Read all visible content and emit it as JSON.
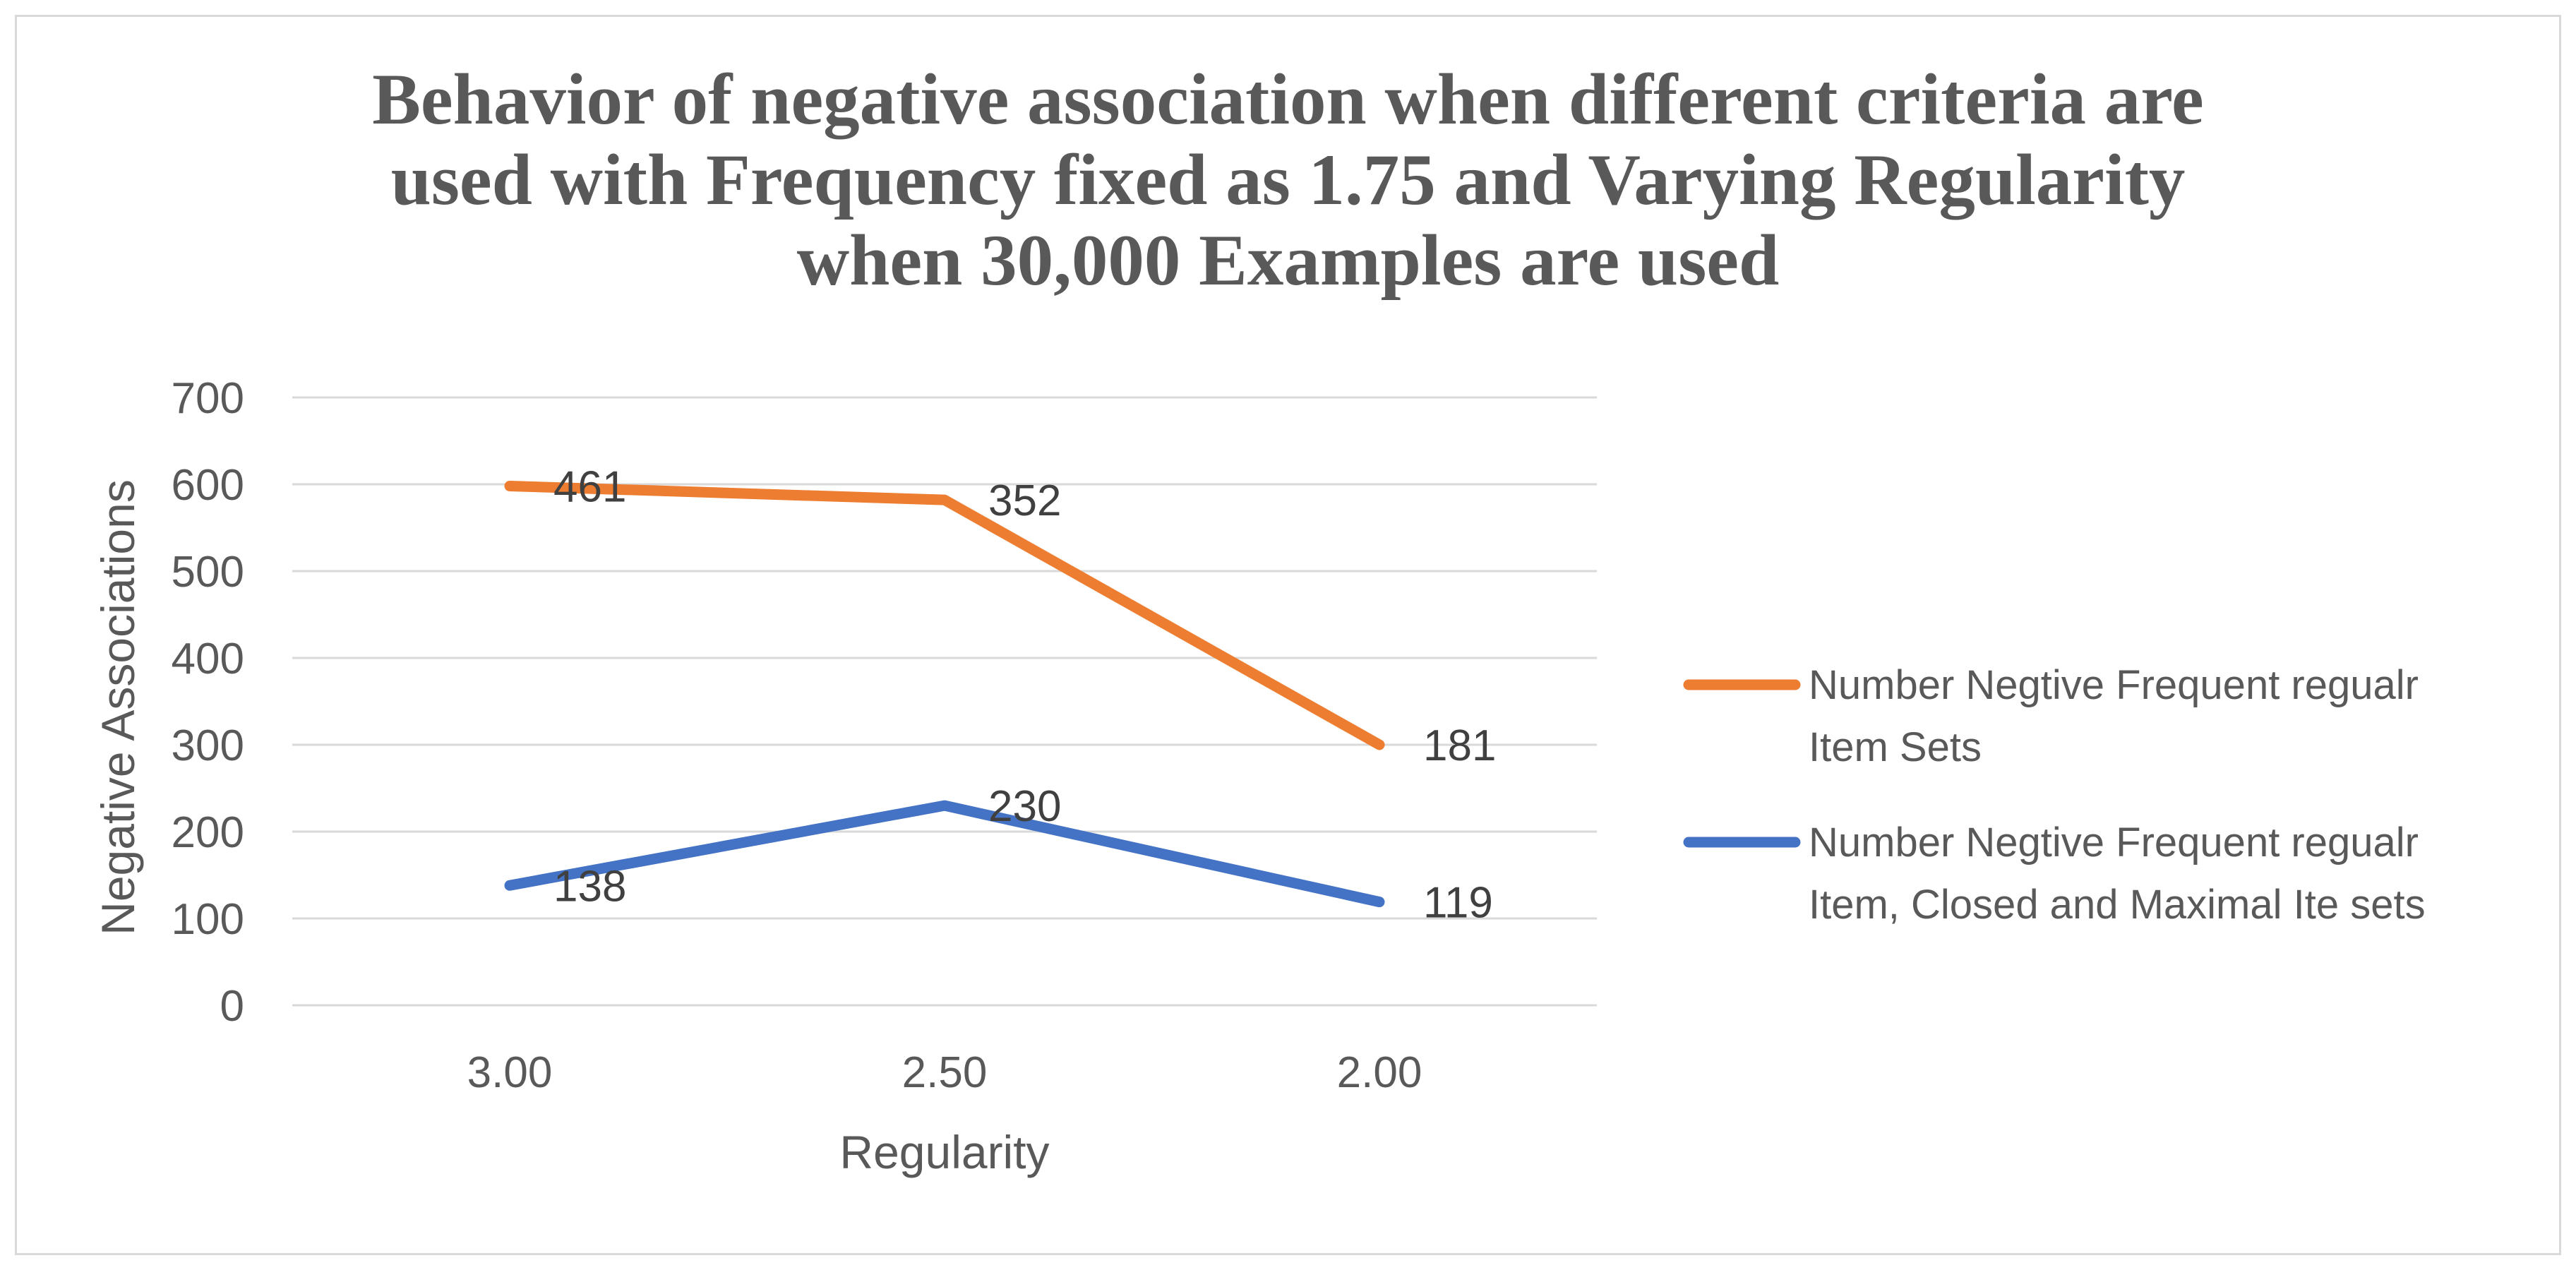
{
  "chart_data": {
    "type": "line",
    "title_lines": [
      "Behavior of negative association when different criteria are",
      "used with Frequency fixed as 1.75 and Varying Regularity",
      "when 30,000 Examples are used"
    ],
    "xlabel": "Regularity",
    "ylabel": "Negative Associations",
    "categories": [
      "3.00",
      "2.50",
      "2.00"
    ],
    "ylim": [
      0,
      700
    ],
    "yticks": [
      "0",
      "100",
      "200",
      "300",
      "400",
      "500",
      "600",
      "700"
    ],
    "grid": true,
    "legend_position": "right",
    "series": [
      {
        "name": "Number Negtive Frequent regualr Item Sets",
        "legend_lines": [
          "Number Negtive Frequent regualr",
          "Item Sets"
        ],
        "color": "#ed7d31",
        "values": [
          598,
          582,
          300
        ],
        "data_labels": [
          "461",
          "352",
          "181"
        ]
      },
      {
        "name": "Number Negtive Frequent regualr Item, Closed and Maximal Ite sets",
        "legend_lines": [
          "Number Negtive Frequent regualr",
          "Item, Closed and Maximal Ite sets"
        ],
        "color": "#4472c4",
        "values": [
          138,
          230,
          119
        ],
        "data_labels": [
          "138",
          "230",
          "119"
        ]
      }
    ]
  }
}
